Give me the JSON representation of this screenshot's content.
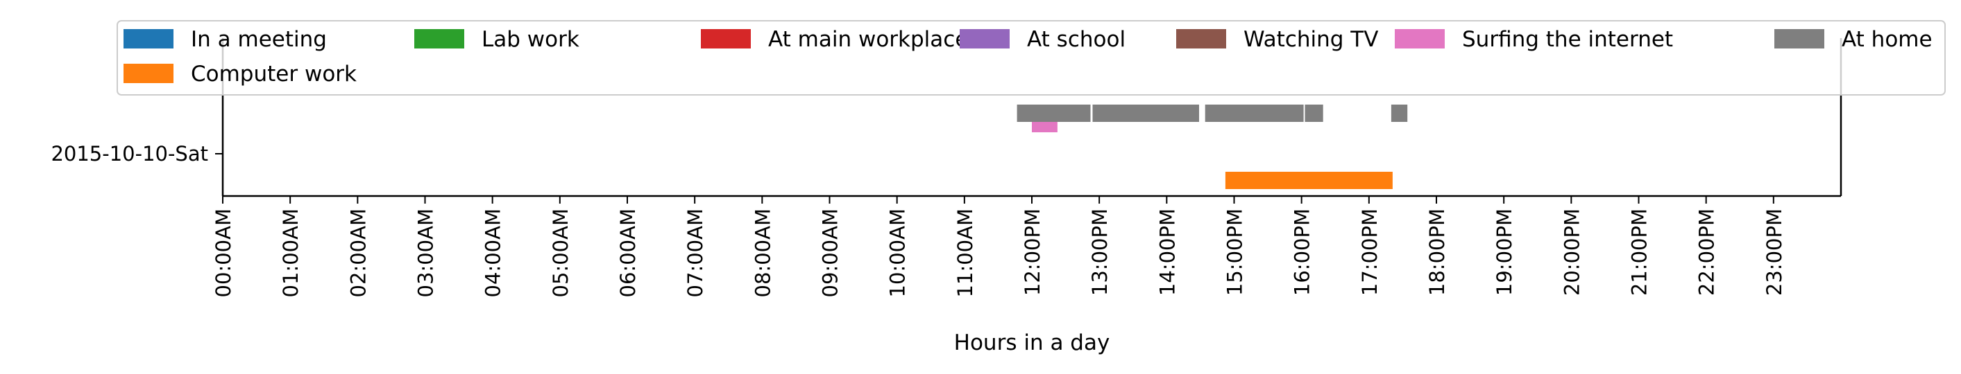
{
  "chart_data": {
    "type": "timeline",
    "title": "",
    "xlabel": "Hours in a day",
    "ylabel": "",
    "xlim": [
      0,
      24
    ],
    "x_ticks": [
      {
        "value": 0,
        "label": "00:00AM"
      },
      {
        "value": 1,
        "label": "01:00AM"
      },
      {
        "value": 2,
        "label": "02:00AM"
      },
      {
        "value": 3,
        "label": "03:00AM"
      },
      {
        "value": 4,
        "label": "04:00AM"
      },
      {
        "value": 5,
        "label": "05:00AM"
      },
      {
        "value": 6,
        "label": "06:00AM"
      },
      {
        "value": 7,
        "label": "07:00AM"
      },
      {
        "value": 8,
        "label": "08:00AM"
      },
      {
        "value": 9,
        "label": "09:00AM"
      },
      {
        "value": 10,
        "label": "10:00AM"
      },
      {
        "value": 11,
        "label": "11:00AM"
      },
      {
        "value": 12,
        "label": "12:00PM"
      },
      {
        "value": 13,
        "label": "13:00PM"
      },
      {
        "value": 14,
        "label": "14:00PM"
      },
      {
        "value": 15,
        "label": "15:00PM"
      },
      {
        "value": 16,
        "label": "16:00PM"
      },
      {
        "value": 17,
        "label": "17:00PM"
      },
      {
        "value": 18,
        "label": "18:00PM"
      },
      {
        "value": 19,
        "label": "19:00PM"
      },
      {
        "value": 20,
        "label": "20:00PM"
      },
      {
        "value": 21,
        "label": "21:00PM"
      },
      {
        "value": 22,
        "label": "22:00PM"
      },
      {
        "value": 23,
        "label": "23:00PM"
      }
    ],
    "days": [
      "2015-10-10-Sat"
    ],
    "grid": false,
    "legend_placement": "top",
    "categories": [
      {
        "name": "In a meeting",
        "color": "#1f77b4"
      },
      {
        "name": "Lab work",
        "color": "#2ca02c"
      },
      {
        "name": "At main workplace",
        "color": "#d62728"
      },
      {
        "name": "At school",
        "color": "#9467bd"
      },
      {
        "name": "Watching TV",
        "color": "#8c564b"
      },
      {
        "name": "Surfing the internet",
        "color": "#e377c2"
      },
      {
        "name": "At home",
        "color": "#7f7f7f"
      },
      {
        "name": "Computer work",
        "color": "#ff7f0e"
      }
    ],
    "intervals": [
      {
        "day": "2015-10-10-Sat",
        "activity": "At home",
        "start": 11.78,
        "end": 12.87
      },
      {
        "day": "2015-10-10-Sat",
        "activity": "At home",
        "start": 12.9,
        "end": 14.48
      },
      {
        "day": "2015-10-10-Sat",
        "activity": "At home",
        "start": 14.57,
        "end": 16.03
      },
      {
        "day": "2015-10-10-Sat",
        "activity": "At home",
        "start": 16.05,
        "end": 16.32
      },
      {
        "day": "2015-10-10-Sat",
        "activity": "At home",
        "start": 17.33,
        "end": 17.57
      },
      {
        "day": "2015-10-10-Sat",
        "activity": "Surfing the internet",
        "start": 12.0,
        "end": 12.38
      },
      {
        "day": "2015-10-10-Sat",
        "activity": "Computer work",
        "start": 14.87,
        "end": 17.35
      }
    ]
  }
}
